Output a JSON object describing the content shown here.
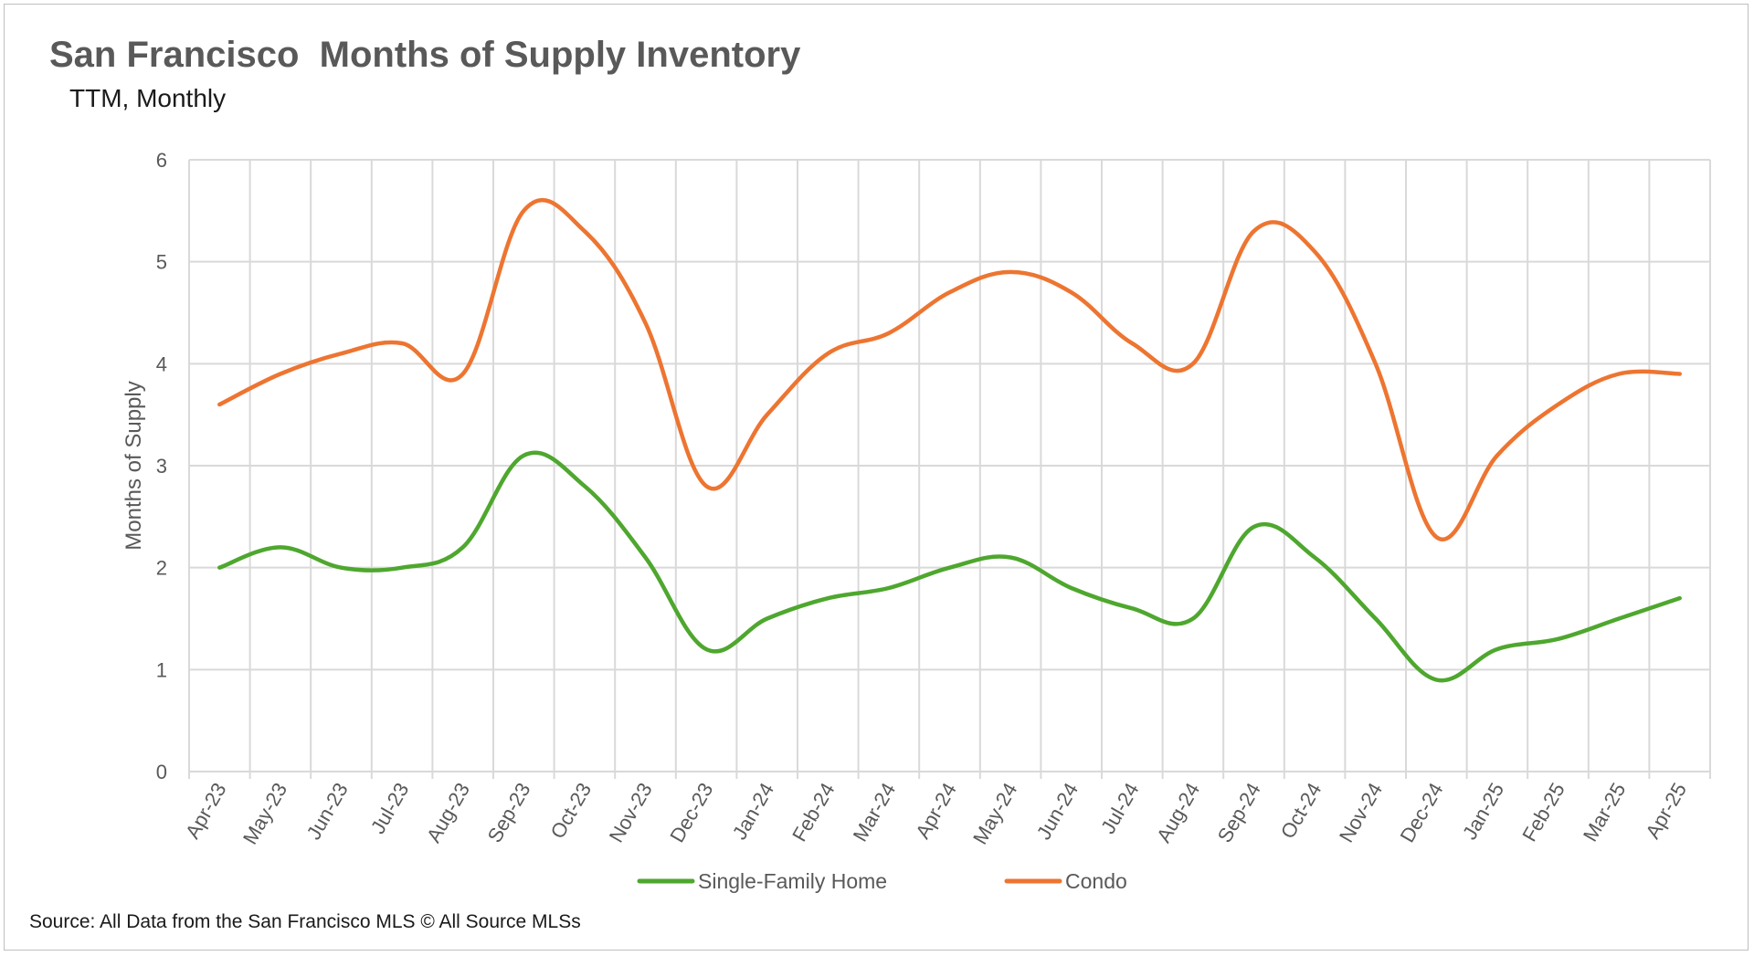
{
  "chart_data": {
    "type": "line",
    "title": "San Francisco  Months of Supply Inventory",
    "subtitle": "TTM, Monthly",
    "ylabel": "Months of Supply",
    "xlabel": "",
    "ylim": [
      0,
      6
    ],
    "yticks": [
      0,
      1,
      2,
      3,
      4,
      5,
      6
    ],
    "grid": true,
    "legend_position": "bottom",
    "categories": [
      "Apr-23",
      "May-23",
      "Jun-23",
      "Jul-23",
      "Aug-23",
      "Sep-23",
      "Oct-23",
      "Nov-23",
      "Dec-23",
      "Jan-24",
      "Feb-24",
      "Mar-24",
      "Apr-24",
      "May-24",
      "Jun-24",
      "Jul-24",
      "Aug-24",
      "Sep-24",
      "Oct-24",
      "Nov-24",
      "Dec-24",
      "Jan-25",
      "Feb-25",
      "Mar-25",
      "Apr-25"
    ],
    "series": [
      {
        "name": "Single-Family Home",
        "color": "#4ea72e",
        "values": [
          2.0,
          2.2,
          2.0,
          2.0,
          2.2,
          3.1,
          2.8,
          2.1,
          1.2,
          1.5,
          1.7,
          1.8,
          2.0,
          2.1,
          1.8,
          1.6,
          1.5,
          2.4,
          2.1,
          1.5,
          0.9,
          1.2,
          1.3,
          1.5,
          1.7
        ]
      },
      {
        "name": "Condo",
        "color": "#ed7531",
        "values": [
          3.6,
          3.9,
          4.1,
          4.2,
          3.9,
          5.5,
          5.3,
          4.4,
          2.8,
          3.5,
          4.1,
          4.3,
          4.7,
          4.9,
          4.7,
          4.2,
          4.0,
          5.3,
          5.1,
          4.0,
          2.3,
          3.1,
          3.6,
          3.9,
          3.9
        ]
      }
    ]
  },
  "source": "Source: All Data from the San Francisco MLS © All Source MLSs"
}
